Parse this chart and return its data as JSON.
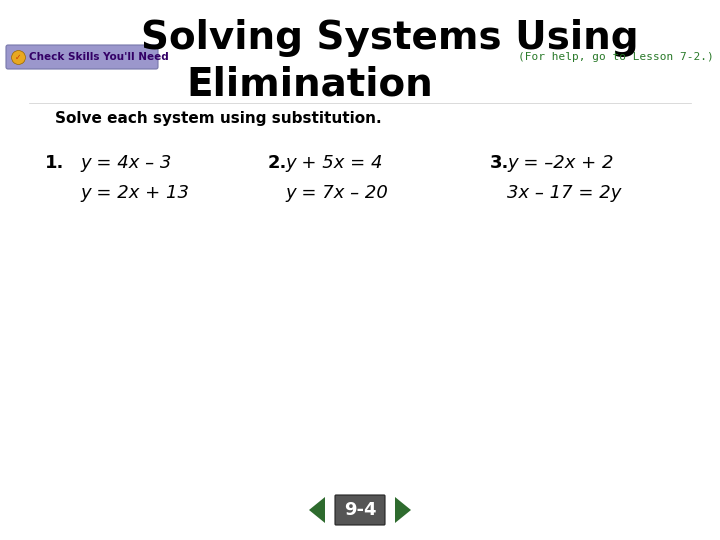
{
  "title_line1": "Solving Systems Using",
  "title_line2": "Elimination",
  "subtitle": "Solve each system using substitution.",
  "for_help": "(For help, go to Lesson 7-2.)",
  "check_skills_text": "Check Skills You'll Need",
  "lesson_label": "9-4",
  "problems": [
    {
      "number": "1.",
      "eq1": "y = 4x – 3",
      "eq2": "y = 2x + 13"
    },
    {
      "number": "2.",
      "eq1": "y + 5x = 4",
      "eq2": "y = 7x – 20"
    },
    {
      "number": "3.",
      "eq1": "y = –2x + 2",
      "eq2": "3x – 17 = 2y"
    }
  ],
  "bg_color": "#ffffff",
  "title_color": "#000000",
  "subtitle_color": "#000000",
  "for_help_color": "#2a7a2a",
  "check_skills_bg": "#9b97cc",
  "check_skills_border": "#7777aa",
  "check_skills_text_color": "#330066",
  "problem_color": "#000000",
  "nav_bg": "#2e6b2e",
  "nav_label_color": "#ffffff",
  "nav_label_bg": "#555555",
  "title_fontsize": 28,
  "subtitle_fontsize": 11,
  "problem_fontsize": 13,
  "for_help_fontsize": 8
}
